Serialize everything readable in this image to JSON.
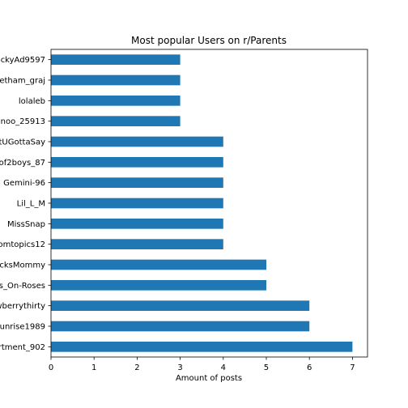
{
  "chart_data": {
    "type": "bar",
    "orientation": "horizontal",
    "title": "Most popular Users on r/Parents",
    "xlabel": "Amount of posts",
    "ylabel": "",
    "xlim": [
      0,
      7.35
    ],
    "xticks": [
      "0",
      "1",
      "2",
      "3",
      "4",
      "5",
      "6",
      "7"
    ],
    "categories": [
      "ckyAd9597",
      "etham_graj",
      "lolaleb",
      "noo_25913",
      "tUGottaSay",
      "of2boys_87",
      "Gemini-96",
      "Lil_L_M",
      "MissSnap",
      "omtopics12",
      "cksMommy",
      "s_On-Roses",
      "wberrythirty",
      "unrise1989",
      "rtment_902"
    ],
    "values": [
      3,
      3,
      3,
      3,
      4,
      4,
      4,
      4,
      4,
      4,
      5,
      5,
      6,
      6,
      7
    ],
    "bar_color": "#1f77b4",
    "grid": false,
    "legend": "none"
  }
}
